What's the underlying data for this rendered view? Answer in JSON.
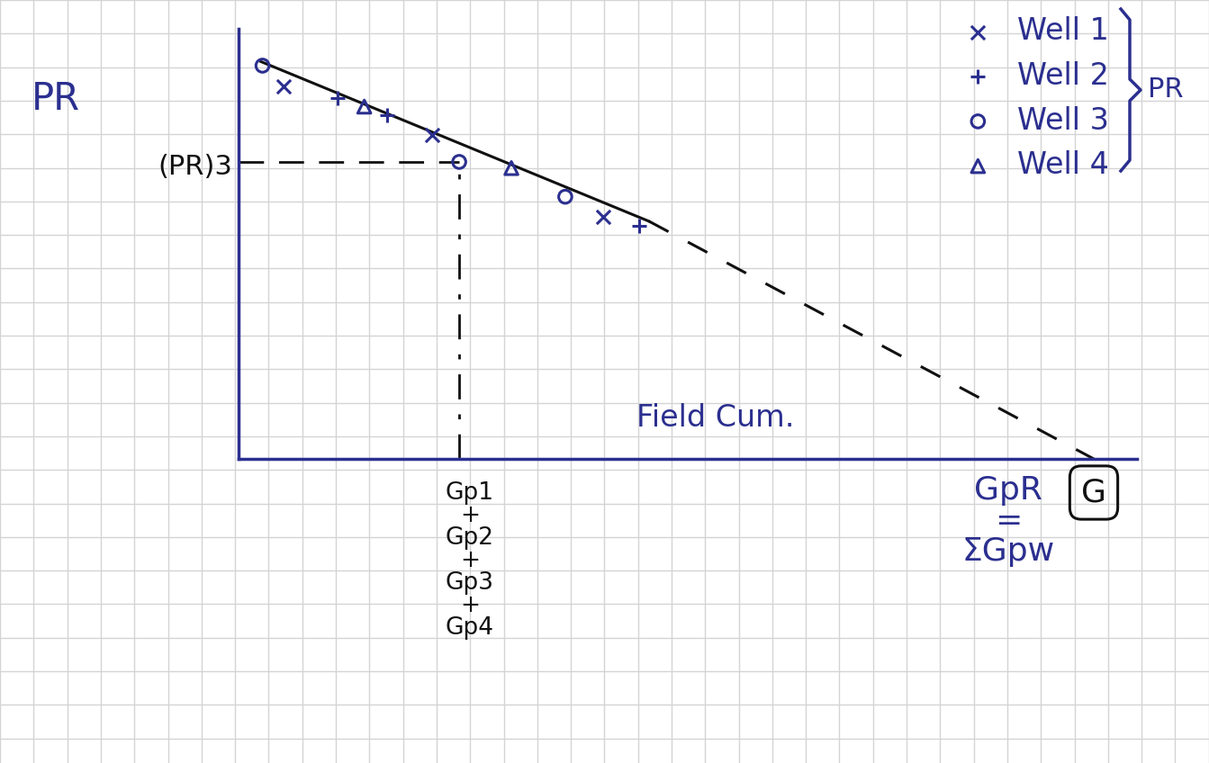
{
  "chart_data": {
    "type": "scatter",
    "x_label": "Field Cum.",
    "y_label": "PR",
    "xlim": [
      0,
      105
    ],
    "ylim": [
      0,
      105
    ],
    "xticks": [],
    "yticks": [],
    "tick_labels": false,
    "grid": false,
    "legend": "upper right",
    "series": [
      {
        "name": "Well 1",
        "type": "scatter",
        "marker": "x",
        "color": "#2b2f8f",
        "x": [
          5.3,
          22.6,
          42.6
        ],
        "y": [
          91,
          79,
          59
        ]
      },
      {
        "name": "Well 2",
        "type": "scatter",
        "marker": "plus",
        "color": "#2b2f8f",
        "x": [
          11.6,
          17.4,
          46.8
        ],
        "y": [
          88,
          84,
          57
        ]
      },
      {
        "name": "Well 3",
        "type": "scatter",
        "marker": "circle",
        "color": "#2b2f8f",
        "x": [
          2.8,
          25.8,
          38.2
        ],
        "y": [
          96,
          72.5,
          64
        ]
      },
      {
        "name": "Well 4",
        "type": "scatter",
        "marker": "triangle",
        "color": "#2b2f8f",
        "x": [
          14.7,
          31.9
        ],
        "y": [
          86,
          71
        ]
      }
    ],
    "lines": [
      {
        "type": "line",
        "line_style": "solid",
        "color": "#111111",
        "x": [
          2.6,
          48
        ],
        "y": [
          97,
          58
        ]
      },
      {
        "type": "line",
        "line_style": "dashed",
        "color": "#111111",
        "x": [
          48,
          100
        ],
        "y": [
          58,
          0
        ]
      }
    ],
    "annotations": [
      {
        "text": "(PR)3",
        "color": "#111111"
      },
      {
        "text": "Gp1\n+\nGp2\n+\nGp3\n+\nGp4",
        "color": "#111111"
      },
      {
        "text": "G",
        "color": "#111111"
      },
      {
        "text": "GpR\n=\nΣGpw",
        "color": "#2b2f8f"
      },
      {
        "text": "PR",
        "color": "#2b2f8f"
      }
    ]
  }
}
